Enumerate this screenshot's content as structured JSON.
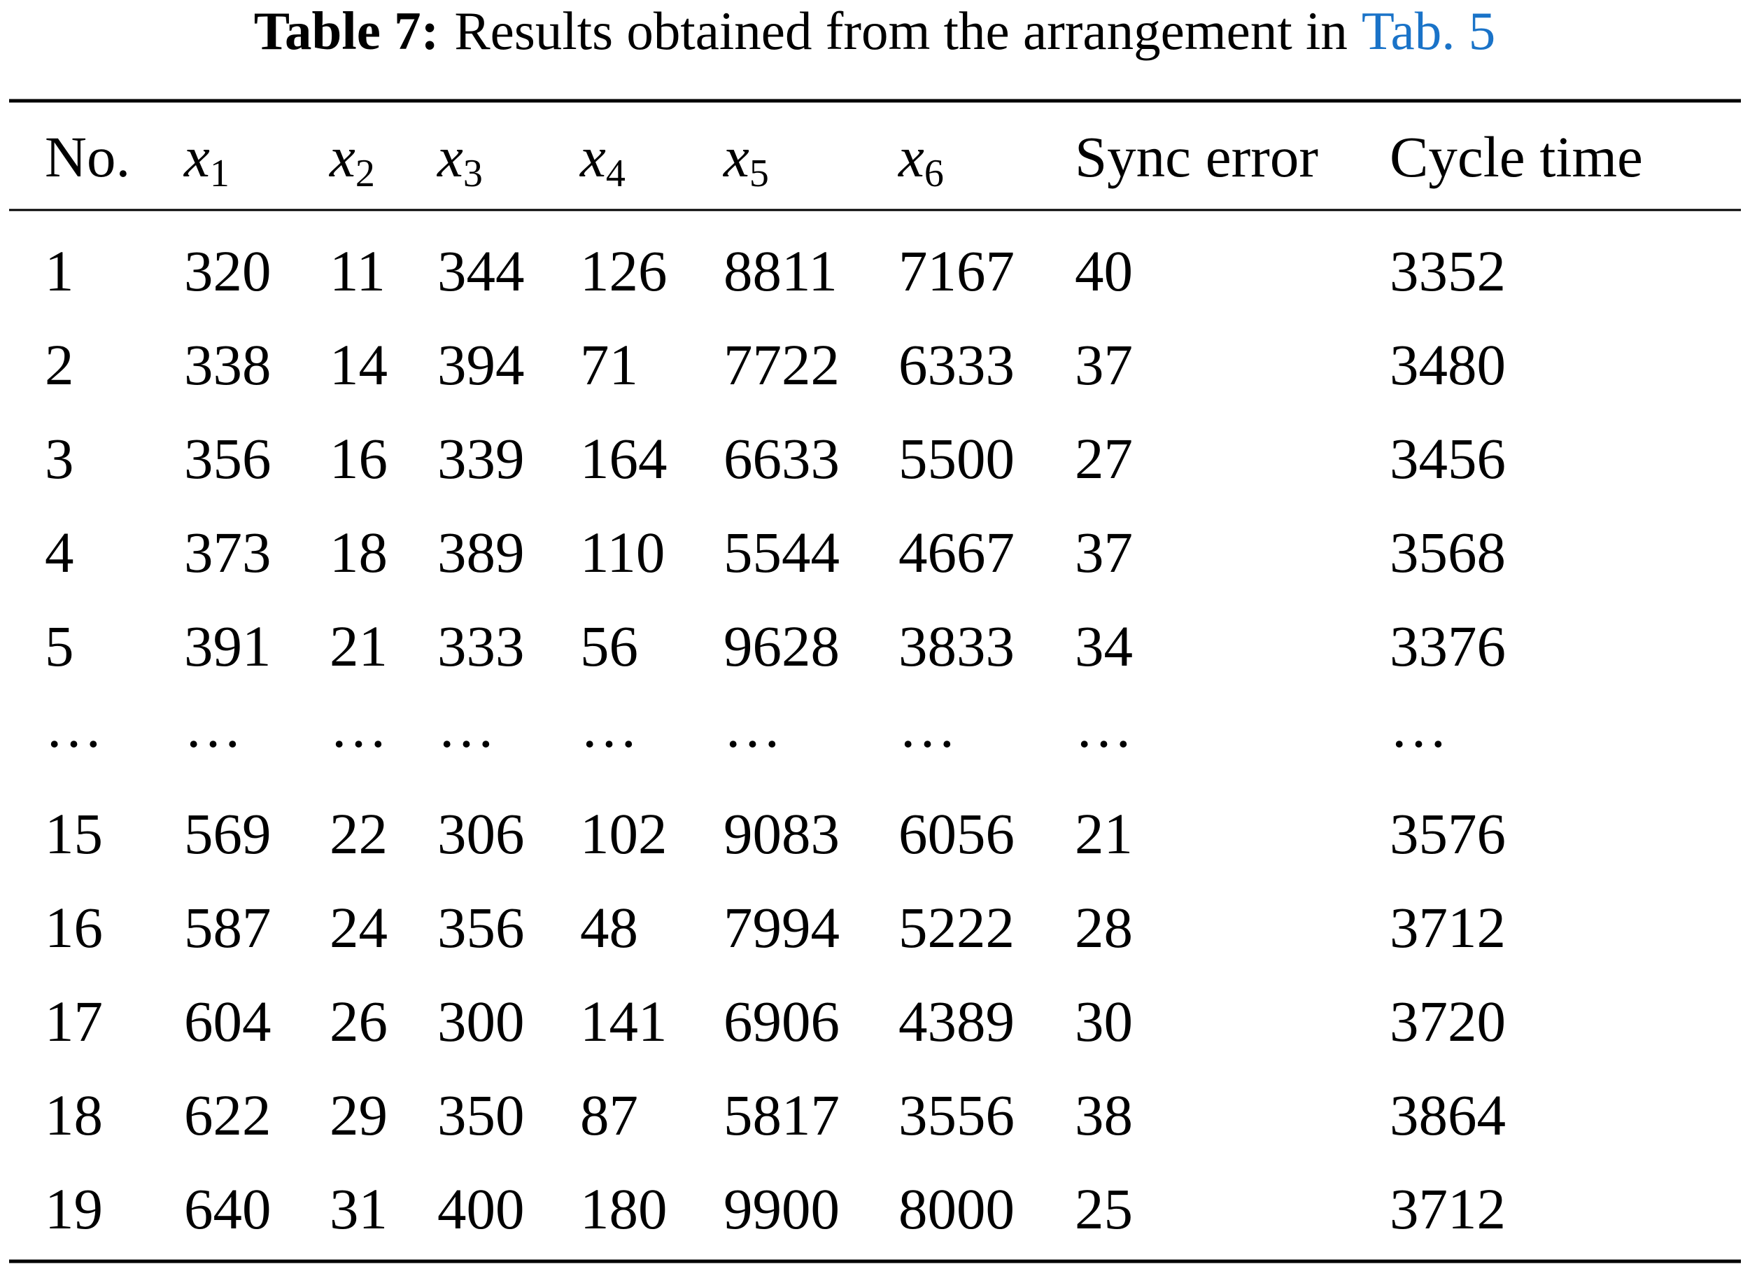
{
  "caption": {
    "label": "Table 7:",
    "text": "Results obtained from the arrangement in",
    "link": "Tab. 5"
  },
  "table": {
    "header": [
      "No.",
      {
        "base": "x",
        "sub": "1"
      },
      {
        "base": "x",
        "sub": "2"
      },
      {
        "base": "x",
        "sub": "3"
      },
      {
        "base": "x",
        "sub": "4"
      },
      {
        "base": "x",
        "sub": "5"
      },
      {
        "base": "x",
        "sub": "6"
      },
      "Sync error",
      "Cycle time"
    ],
    "rows": [
      [
        "1",
        "320",
        "11",
        "344",
        "126",
        "8811",
        "7167",
        "40",
        "3352"
      ],
      [
        "2",
        "338",
        "14",
        "394",
        "71",
        "7722",
        "6333",
        "37",
        "3480"
      ],
      [
        "3",
        "356",
        "16",
        "339",
        "164",
        "6633",
        "5500",
        "27",
        "3456"
      ],
      [
        "4",
        "373",
        "18",
        "389",
        "110",
        "5544",
        "4667",
        "37",
        "3568"
      ],
      [
        "5",
        "391",
        "21",
        "333",
        "56",
        "9628",
        "3833",
        "34",
        "3376"
      ],
      [
        "…",
        "…",
        "…",
        "…",
        "…",
        "…",
        "…",
        "…",
        "…"
      ],
      [
        "15",
        "569",
        "22",
        "306",
        "102",
        "9083",
        "6056",
        "21",
        "3576"
      ],
      [
        "16",
        "587",
        "24",
        "356",
        "48",
        "7994",
        "5222",
        "28",
        "3712"
      ],
      [
        "17",
        "604",
        "26",
        "300",
        "141",
        "6906",
        "4389",
        "30",
        "3720"
      ],
      [
        "18",
        "622",
        "29",
        "350",
        "87",
        "5817",
        "3556",
        "38",
        "3864"
      ],
      [
        "19",
        "640",
        "31",
        "400",
        "180",
        "9900",
        "8000",
        "25",
        "3712"
      ]
    ]
  }
}
